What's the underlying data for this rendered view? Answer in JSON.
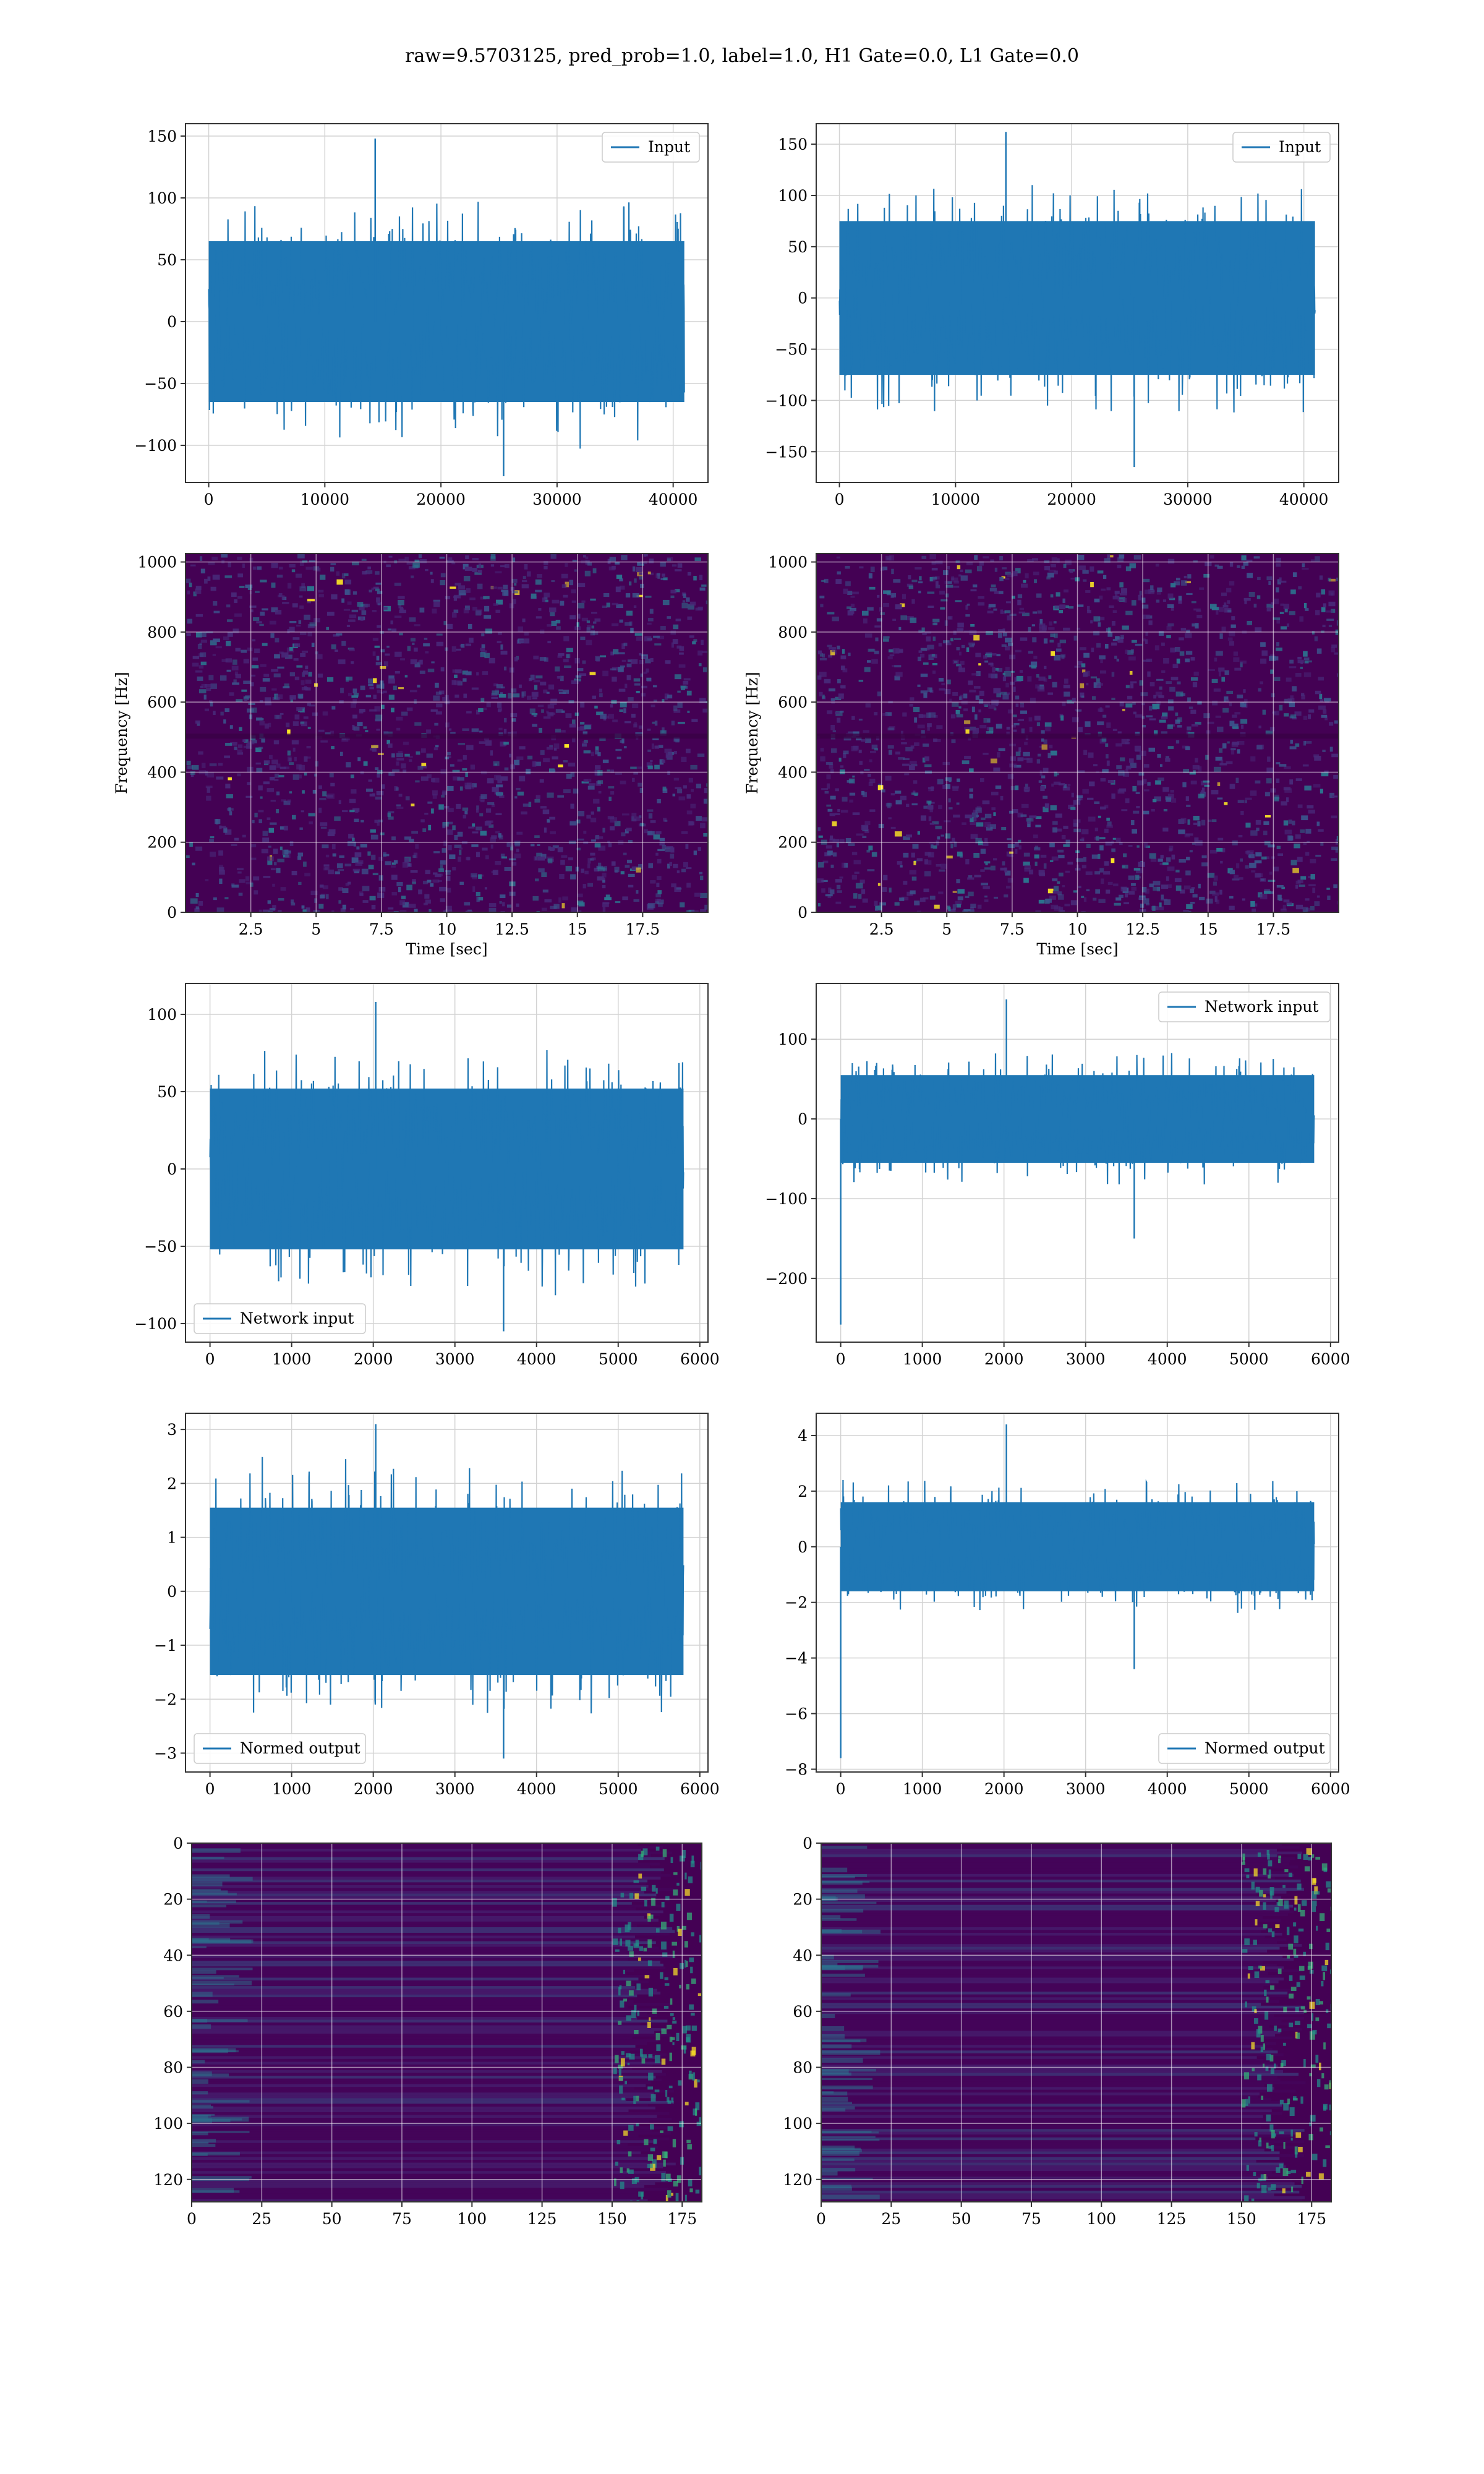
{
  "figure": {
    "suptitle": "raw=9.5703125, pred_prob=1.0, label=1.0, H1 Gate=0.0, L1 Gate=0.0"
  },
  "colors": {
    "line": "#1f77b4",
    "grid": "#d3d3d3",
    "axes": "#333333",
    "viridis_low": "#440154",
    "viridis_mid": "#21918c",
    "viridis_high": "#fde725"
  },
  "chart_data": [
    {
      "id": "r1c1",
      "type": "line",
      "series": [
        {
          "name": "Input"
        }
      ],
      "legend": "upper right",
      "grid": true,
      "xlim": [
        -2000,
        43000
      ],
      "ylim": [
        -130,
        160
      ],
      "xticks": [
        0,
        10000,
        20000,
        30000,
        40000
      ],
      "yticks": [
        -100,
        -50,
        0,
        50,
        100,
        150
      ],
      "x_range": [
        0,
        40960
      ],
      "n": 40960,
      "envelope": {
        "core": 65,
        "peak_max": 148,
        "peak_min": -125
      },
      "xlabel": "",
      "ylabel": ""
    },
    {
      "id": "r1c2",
      "type": "line",
      "series": [
        {
          "name": "Input"
        }
      ],
      "legend": "upper right",
      "grid": true,
      "xlim": [
        -2000,
        43000
      ],
      "ylim": [
        -180,
        170
      ],
      "xticks": [
        0,
        10000,
        20000,
        30000,
        40000
      ],
      "yticks": [
        -150,
        -100,
        -50,
        0,
        50,
        100,
        150
      ],
      "x_range": [
        0,
        40960
      ],
      "n": 40960,
      "envelope": {
        "core": 75,
        "peak_max": 162,
        "peak_min": -165
      },
      "xlabel": "",
      "ylabel": ""
    },
    {
      "id": "r2c1",
      "type": "heatmap",
      "grid": true,
      "xlim": [
        0,
        20
      ],
      "ylim": [
        0,
        1024
      ],
      "xticks": [
        2.5,
        5.0,
        7.5,
        10.0,
        12.5,
        15.0,
        17.5
      ],
      "yticks": [
        0,
        200,
        400,
        600,
        800,
        1000
      ],
      "xlabel": "Time [sec]",
      "ylabel": "Frequency [Hz]",
      "colormap": "viridis"
    },
    {
      "id": "r2c2",
      "type": "heatmap",
      "grid": true,
      "xlim": [
        0,
        20
      ],
      "ylim": [
        0,
        1024
      ],
      "xticks": [
        2.5,
        5.0,
        7.5,
        10.0,
        12.5,
        15.0,
        17.5
      ],
      "yticks": [
        0,
        200,
        400,
        600,
        800,
        1000
      ],
      "xlabel": "Time [sec]",
      "ylabel": "Frequency [Hz]",
      "colormap": "viridis"
    },
    {
      "id": "r3c1",
      "type": "line",
      "series": [
        {
          "name": "Network input"
        }
      ],
      "legend": "lower left",
      "grid": true,
      "xlim": [
        -300,
        6100
      ],
      "ylim": [
        -112,
        120
      ],
      "xticks": [
        0,
        1000,
        2000,
        3000,
        4000,
        5000,
        6000
      ],
      "yticks": [
        -100,
        -50,
        0,
        50,
        100
      ],
      "x_range": [
        0,
        5800
      ],
      "n": 5800,
      "envelope": {
        "core": 52,
        "peak_max": 108,
        "peak_min": -105
      },
      "xlabel": "",
      "ylabel": ""
    },
    {
      "id": "r3c2",
      "type": "line",
      "series": [
        {
          "name": "Network input"
        }
      ],
      "legend": "upper right",
      "grid": true,
      "xlim": [
        -300,
        6100
      ],
      "ylim": [
        -280,
        170
      ],
      "xticks": [
        0,
        1000,
        2000,
        3000,
        4000,
        5000,
        6000
      ],
      "yticks": [
        -200,
        -100,
        0,
        100
      ],
      "x_range": [
        0,
        5800
      ],
      "n": 5800,
      "envelope": {
        "core": 55,
        "peak_max": 150,
        "peak_min": -150,
        "start_spike": -258
      },
      "xlabel": "",
      "ylabel": ""
    },
    {
      "id": "r4c1",
      "type": "line",
      "series": [
        {
          "name": "Normed output"
        }
      ],
      "legend": "lower left",
      "grid": true,
      "xlim": [
        -300,
        6100
      ],
      "ylim": [
        -3.35,
        3.3
      ],
      "xticks": [
        0,
        1000,
        2000,
        3000,
        4000,
        5000,
        6000
      ],
      "yticks": [
        -3,
        -2,
        -1,
        0,
        1,
        2,
        3
      ],
      "x_range": [
        0,
        5800
      ],
      "n": 5800,
      "envelope": {
        "core": 1.55,
        "peak_max": 3.1,
        "peak_min": -3.1
      },
      "xlabel": "",
      "ylabel": ""
    },
    {
      "id": "r4c2",
      "type": "line",
      "series": [
        {
          "name": "Normed output"
        }
      ],
      "legend": "lower right",
      "grid": true,
      "xlim": [
        -300,
        6100
      ],
      "ylim": [
        -8.1,
        4.8
      ],
      "xticks": [
        0,
        1000,
        2000,
        3000,
        4000,
        5000,
        6000
      ],
      "yticks": [
        -8,
        -6,
        -4,
        -2,
        0,
        2,
        4
      ],
      "x_range": [
        0,
        5800
      ],
      "n": 5800,
      "envelope": {
        "core": 1.6,
        "peak_max": 4.4,
        "peak_min": -4.4,
        "start_spike": -7.6
      },
      "xlabel": "",
      "ylabel": ""
    },
    {
      "id": "r5c1",
      "type": "heatmap",
      "grid": true,
      "xlim": [
        0,
        182
      ],
      "ylim": [
        128,
        0
      ],
      "xticks": [
        0,
        25,
        50,
        75,
        100,
        125,
        150,
        175
      ],
      "yticks": [
        0,
        20,
        40,
        60,
        80,
        100,
        120
      ],
      "xlabel": "",
      "ylabel": "",
      "colormap": "viridis"
    },
    {
      "id": "r5c2",
      "type": "heatmap",
      "grid": true,
      "xlim": [
        0,
        182
      ],
      "ylim": [
        128,
        0
      ],
      "xticks": [
        0,
        25,
        50,
        75,
        100,
        125,
        150,
        175
      ],
      "yticks": [
        0,
        20,
        40,
        60,
        80,
        100,
        120
      ],
      "xlabel": "",
      "ylabel": "",
      "colormap": "viridis"
    }
  ]
}
